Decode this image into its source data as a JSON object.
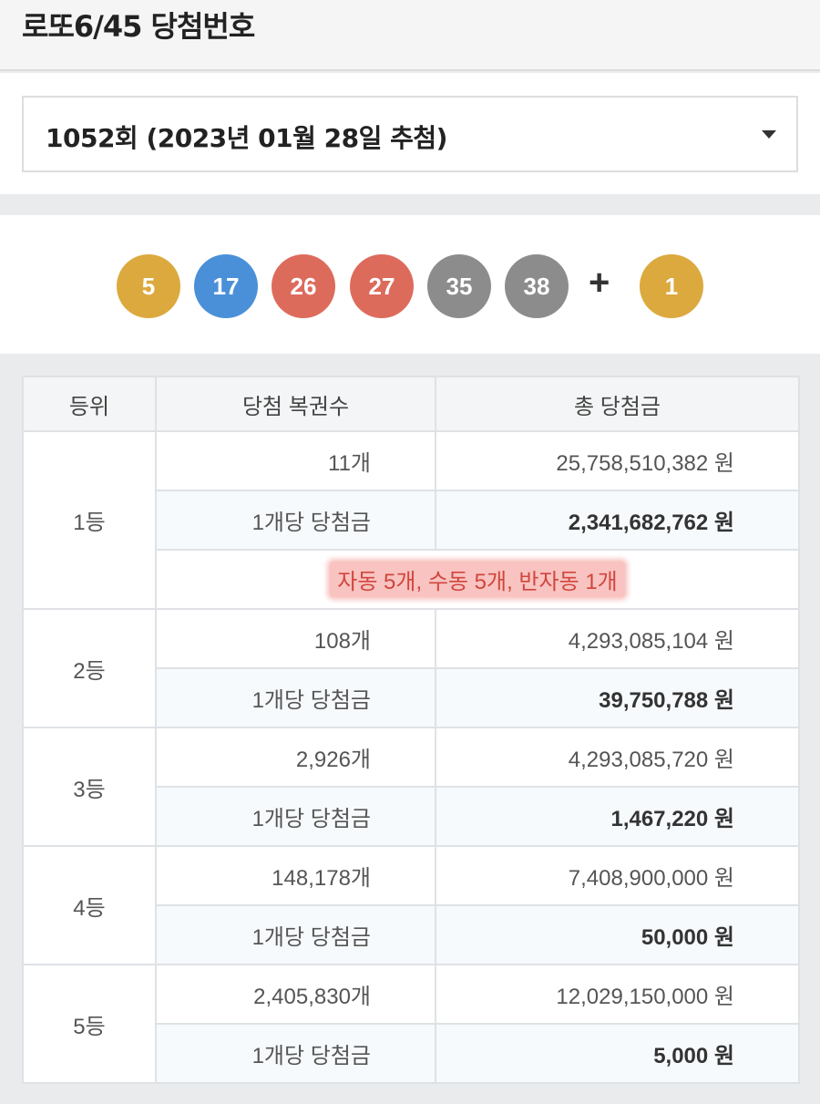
{
  "header": {
    "title": "로또6/45 당첨번호"
  },
  "round_select": {
    "selected": "1052회 (2023년 01월 28일 추첨)"
  },
  "winning_numbers": {
    "balls": [
      {
        "number": "5",
        "color": "#dba93e"
      },
      {
        "number": "17",
        "color": "#4a90d9"
      },
      {
        "number": "26",
        "color": "#dd6b5c"
      },
      {
        "number": "27",
        "color": "#dd6b5c"
      },
      {
        "number": "35",
        "color": "#8c8c8c"
      },
      {
        "number": "38",
        "color": "#8c8c8c"
      }
    ],
    "plus": "+",
    "bonus": {
      "number": "1",
      "color": "#dba93e"
    }
  },
  "table": {
    "headers": [
      "등위",
      "당첨 복권수",
      "총 당첨금"
    ],
    "per_ticket_label": "1개당 당첨금",
    "rows": [
      {
        "rank": "1등",
        "count": "11개",
        "total": "25,758,510,382 원",
        "per_ticket": "2,341,682,762 원",
        "note": "자동 5개, 수동 5개, 반자동 1개"
      },
      {
        "rank": "2등",
        "count": "108개",
        "total": "4,293,085,104 원",
        "per_ticket": "39,750,788 원"
      },
      {
        "rank": "3등",
        "count": "2,926개",
        "total": "4,293,085,720 원",
        "per_ticket": "1,467,220 원"
      },
      {
        "rank": "4등",
        "count": "148,178개",
        "total": "7,408,900,000 원",
        "per_ticket": "50,000 원"
      },
      {
        "rank": "5등",
        "count": "2,405,830개",
        "total": "12,029,150,000 원",
        "per_ticket": "5,000 원"
      }
    ]
  }
}
